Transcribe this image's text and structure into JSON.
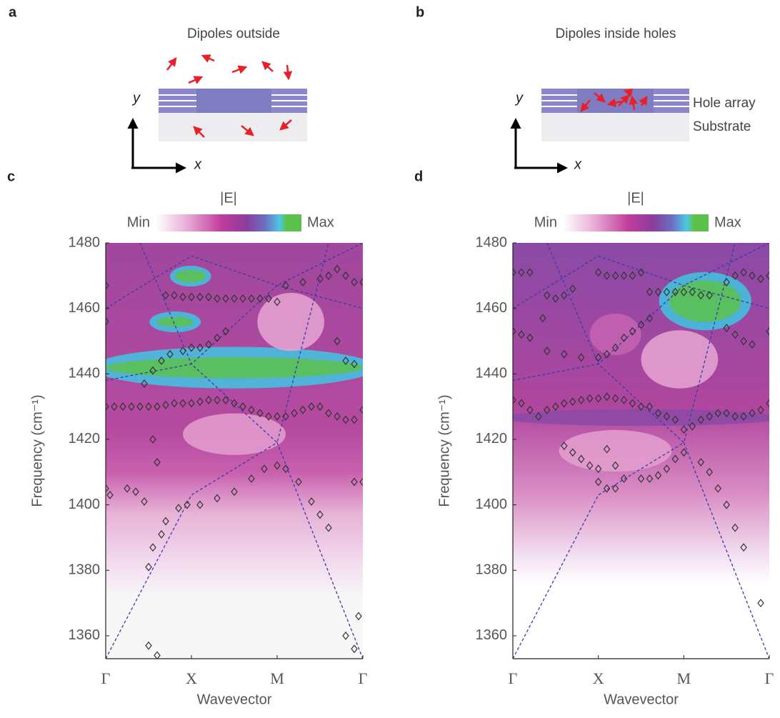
{
  "panels": {
    "a": {
      "label": "a",
      "title": "Dipoles outside",
      "axis_x": "x",
      "axis_y": "y"
    },
    "b": {
      "label": "b",
      "title": "Dipoles inside holes",
      "axis_x": "x",
      "axis_y": "y",
      "layer_top": "Hole array",
      "layer_bottom": "Substrate"
    }
  },
  "chart_data": [
    {
      "type": "contour",
      "label": "c",
      "colorbar": {
        "title": "|E|",
        "min_label": "Min",
        "max_label": "Max"
      },
      "xlabel": "Wavevector",
      "ylabel": "Frequency (cm⁻¹)",
      "xlim": [
        0,
        3
      ],
      "ylim": [
        1353,
        1480
      ],
      "xticks": [
        {
          "value": 0,
          "label": "Γ"
        },
        {
          "value": 1,
          "label": "X"
        },
        {
          "value": 2,
          "label": "M"
        },
        {
          "value": 3,
          "label": "Γ"
        }
      ],
      "yticks": [
        1360,
        1380,
        1400,
        1420,
        1440,
        1460,
        1480
      ],
      "marker_color": "#333333",
      "guide_color": "#3a3aa8",
      "guide_lines": [
        {
          "x": [
            0,
            1,
            2,
            3
          ],
          "y": [
            1353,
            1403,
            1419,
            1353
          ]
        },
        {
          "x": [
            0,
            1,
            2,
            2.6
          ],
          "y": [
            1438,
            1443,
            1419,
            1480
          ]
        },
        {
          "x": [
            0,
            1,
            2,
            3
          ],
          "y": [
            1460,
            1476,
            1467,
            1460
          ]
        },
        {
          "x": [
            0.4,
            1,
            2,
            3
          ],
          "y": [
            1480,
            1443,
            1467,
            1480
          ]
        }
      ],
      "markers": [
        {
          "x": [
            0,
            0.1,
            0.2,
            0.3,
            0.4,
            0.5,
            0.6,
            0.7,
            0.8,
            0.9,
            1.0,
            1.1,
            1.2,
            1.3,
            1.4,
            1.5,
            1.6,
            1.7,
            1.8,
            1.9,
            2.0,
            2.1,
            2.2,
            2.3,
            2.4,
            2.5,
            2.6,
            2.7,
            2.8,
            2.9,
            3.0
          ],
          "y": [
            1430,
            1430,
            1430,
            1430,
            1430,
            1430,
            1430,
            1430.5,
            1431,
            1431,
            1431,
            1431.5,
            1432,
            1432,
            1432,
            1431,
            1430,
            1429,
            1428,
            1427,
            1427,
            1427,
            1428,
            1429,
            1430,
            1430,
            1428,
            1427,
            1426,
            1426,
            1429
          ]
        },
        {
          "x": [
            0.7,
            0.8,
            0.9,
            1.0,
            1.1,
            1.2,
            1.3,
            1.4,
            1.5,
            1.6,
            1.7,
            1.8,
            1.9,
            2.0
          ],
          "y": [
            1464,
            1464,
            1463.5,
            1463.5,
            1463.5,
            1463.5,
            1463,
            1463,
            1463,
            1463,
            1463,
            1463,
            1463,
            1462
          ]
        },
        {
          "x": [
            0.45,
            0.55,
            0.65,
            0.75,
            0.9,
            1.0,
            1.1,
            1.2,
            1.3,
            1.4
          ],
          "y": [
            1437,
            1441,
            1444,
            1446,
            1447,
            1448,
            1448,
            1449,
            1451,
            1453
          ]
        },
        {
          "x": [
            0.5,
            0.55,
            0.65,
            0.7,
            0.85,
            0.95,
            1.1,
            1.3,
            1.5,
            1.7,
            1.85,
            2.0,
            2.1,
            2.25,
            2.4,
            2.5,
            2.6
          ],
          "y": [
            1381,
            1387,
            1391,
            1395,
            1399,
            1400,
            1400,
            1402,
            1404,
            1408,
            1411,
            1412,
            1411,
            1407,
            1401,
            1397,
            1393
          ]
        },
        {
          "x": [
            2.1,
            2.3,
            2.5,
            2.6,
            2.7,
            2.8,
            2.9,
            3.0
          ],
          "y": [
            1467,
            1468,
            1469,
            1470,
            1472,
            1470,
            1468,
            1468
          ]
        },
        {
          "x": [
            0,
            0.05,
            0.25,
            0.35,
            0.45,
            0.5,
            0.6,
            2.8,
            2.9,
            2.95,
            0,
            0,
            0.55,
            0.6,
            2.7,
            2.8,
            2.9,
            3,
            2.9
          ],
          "y": [
            1405,
            1403,
            1405,
            1404,
            1401,
            1357,
            1354,
            1360,
            1356,
            1366,
            1456,
            1467,
            1420,
            1413,
            1450,
            1444,
            1443,
            1407,
            1407
          ]
        }
      ]
    },
    {
      "type": "contour",
      "label": "d",
      "colorbar": {
        "title": "|E|",
        "min_label": "Min",
        "max_label": "Max"
      },
      "xlabel": "Wavevector",
      "ylabel": "Frequency (cm⁻¹)",
      "xlim": [
        0,
        3
      ],
      "ylim": [
        1353,
        1480
      ],
      "xticks": [
        {
          "value": 0,
          "label": "Γ"
        },
        {
          "value": 1,
          "label": "X"
        },
        {
          "value": 2,
          "label": "M"
        },
        {
          "value": 3,
          "label": "Γ"
        }
      ],
      "yticks": [
        1360,
        1380,
        1400,
        1420,
        1440,
        1460,
        1480
      ],
      "marker_color": "#333333",
      "guide_color": "#3a3aa8",
      "guide_lines": [
        {
          "x": [
            0,
            1,
            2,
            3
          ],
          "y": [
            1353,
            1403,
            1419,
            1353
          ]
        },
        {
          "x": [
            0,
            1,
            2,
            2.6
          ],
          "y": [
            1438,
            1443,
            1419,
            1480
          ]
        },
        {
          "x": [
            0,
            1,
            2,
            3
          ],
          "y": [
            1460,
            1476,
            1467,
            1460
          ]
        },
        {
          "x": [
            0.4,
            1,
            2,
            3
          ],
          "y": [
            1480,
            1443,
            1467,
            1480
          ]
        }
      ],
      "markers": [
        {
          "x": [
            0,
            0.1,
            0.2,
            0.3,
            0.4,
            0.5,
            0.6,
            0.7,
            0.8,
            0.9,
            1.0,
            1.1,
            1.2,
            1.3,
            1.4,
            1.5,
            1.6,
            1.7,
            1.8,
            1.9,
            2.0,
            2.1,
            2.2,
            2.3,
            2.4,
            2.5,
            2.6,
            2.7,
            2.8,
            2.9,
            3.0
          ],
          "y": [
            1432,
            1431,
            1429,
            1427,
            1429,
            1430,
            1431,
            1431.5,
            1432,
            1432.5,
            1432.5,
            1433,
            1432.5,
            1432,
            1431,
            1430,
            1430,
            1428,
            1427,
            1426,
            1423,
            1424,
            1426,
            1427,
            1428,
            1428,
            1427,
            1427,
            1428,
            1429,
            1431
          ]
        },
        {
          "x": [
            0,
            0.1,
            0.2,
            1.0,
            1.1,
            1.2,
            1.3,
            1.4,
            1.5,
            1.6,
            1.7,
            1.8,
            1.9,
            2.0,
            2.1,
            2.2,
            2.3,
            2.5,
            2.6,
            2.7,
            2.8,
            2.9,
            3
          ],
          "y": [
            1471,
            1471,
            1471,
            1471,
            1470,
            1470,
            1470,
            1470,
            1471,
            1465,
            1465,
            1465,
            1465,
            1465,
            1465,
            1464,
            1464,
            1468,
            1470,
            1471,
            1470,
            1469,
            1470
          ]
        },
        {
          "x": [
            0,
            0.1,
            0.2,
            0.4,
            0.6,
            0.8,
            1.0,
            1.1,
            1.2,
            1.3,
            1.4,
            1.5,
            1.6,
            2.5,
            2.6,
            2.7,
            2.8,
            3
          ],
          "y": [
            1453,
            1452,
            1451,
            1447,
            1446,
            1445,
            1445,
            1446,
            1448,
            1451,
            1453,
            1455,
            1457,
            1454,
            1452,
            1450,
            1449,
            1453
          ]
        },
        {
          "x": [
            0.6,
            0.7,
            0.8,
            0.9,
            1.0,
            1.1,
            1.2,
            1.3,
            1.5,
            1.6,
            1.7,
            1.8,
            1.9,
            2.0,
            2.2,
            2.3,
            2.4,
            2.5,
            2.6,
            2.7,
            2.9
          ],
          "y": [
            1418,
            1416,
            1414,
            1412,
            1411,
            1417,
            1412,
            1408,
            1408,
            1408,
            1409,
            1411,
            1414,
            1416,
            1413,
            1410,
            1405,
            1400,
            1393,
            1387,
            1370
          ]
        },
        {
          "x": [
            0.4,
            0.5,
            0.6,
            0.7,
            0.35,
            1.0,
            1.1,
            1.2
          ],
          "y": [
            1464,
            1463,
            1464,
            1466,
            1457,
            1407,
            1405,
            1405
          ]
        }
      ]
    }
  ]
}
